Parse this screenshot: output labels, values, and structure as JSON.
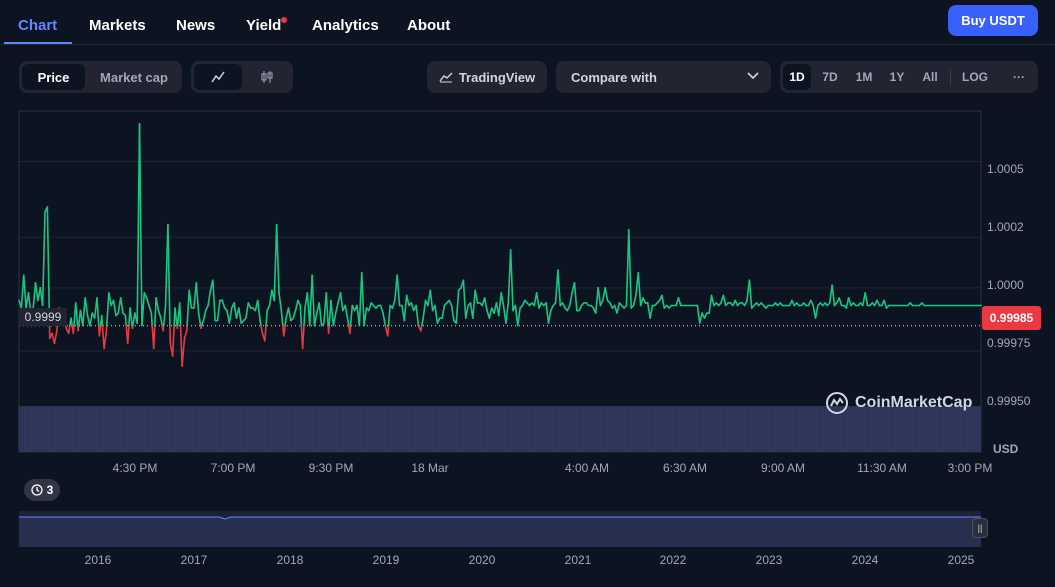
{
  "nav": {
    "tabs": [
      "Chart",
      "Markets",
      "News",
      "Yield",
      "Analytics",
      "About"
    ],
    "buy_label": "Buy USDT"
  },
  "toolbar": {
    "price_label": "Price",
    "marketcap_label": "Market cap",
    "tradingview_label": "TradingView",
    "compare_label": "Compare with",
    "ranges": [
      "1D",
      "7D",
      "1M",
      "1Y",
      "All"
    ],
    "log_label": "LOG",
    "more_label": "···"
  },
  "chart": {
    "current_price": "0.99985",
    "reference_price": "0.9999",
    "currency": "USD",
    "watermark": "CoinMarketCap",
    "history_count": "3",
    "colors": {
      "up": "#16c784",
      "down": "#ea3943",
      "accent": "#3861fb"
    }
  },
  "navigator": {
    "years": [
      "2016",
      "2017",
      "2018",
      "2019",
      "2020",
      "2021",
      "2022",
      "2023",
      "2024",
      "2025"
    ]
  },
  "chart_data": {
    "type": "line",
    "y_ticks": [
      "1.0005",
      "1.0002",
      "1.0000",
      "0.99975",
      "0.99950"
    ],
    "x_ticks": [
      "4:30 PM",
      "7:00 PM",
      "9:30 PM",
      "18 Mar",
      "4:00 AM",
      "6:30 AM",
      "9:00 AM",
      "11:30 AM",
      "3:00 PM"
    ],
    "ylim": [
      0.99935,
      1.0007
    ],
    "baseline": 0.99985,
    "values": [
      0.99995,
      0.99992,
      1.00005,
      0.99992,
      0.99998,
      0.9999,
      0.99992,
      1.00002,
      0.99995,
      1.0,
      0.99993,
      1.0003,
      1.00032,
      0.9998,
      0.99982,
      0.99978,
      0.99983,
      0.99992,
      0.9999,
      0.99988,
      0.99984,
      0.99982,
      0.99988,
      0.99982,
      0.99994,
      0.99983,
      0.99991,
      0.99985,
      0.99996,
      0.99989,
      0.99985,
      0.9999,
      0.99988,
      0.99996,
      0.99981,
      0.99989,
      0.99976,
      0.99983,
      0.99998,
      0.99993,
      0.99995,
      0.99989,
      0.9999,
      0.99996,
      0.9999,
      0.99989,
      0.99978,
      0.99992,
      0.99984,
      0.9999,
      0.99986,
      1.00065,
      0.99985,
      0.99998,
      0.99996,
      0.99993,
      0.9999,
      0.99976,
      0.99996,
      0.99991,
      0.99988,
      0.99983,
      0.99993,
      1.00025,
      0.99978,
      0.99973,
      0.99992,
      0.99984,
      0.99994,
      0.99969,
      0.9998,
      0.99983,
      0.99999,
      0.99992,
      0.99992,
      1.00002,
      0.9999,
      0.99984,
      0.99987,
      0.99991,
      0.99993,
      0.99999,
      1.00003,
      0.99987,
      0.99987,
      0.99995,
      0.99995,
      0.99992,
      0.99991,
      0.99986,
      0.99992,
      0.99994,
      0.99988,
      0.99992,
      0.99986,
      0.99987,
      0.99988,
      0.99994,
      0.99992,
      0.99992,
      0.99991,
      0.99995,
      0.99987,
      0.99982,
      0.99979,
      0.99991,
      0.99993,
      0.99999,
      0.99995,
      1.00025,
      0.99998,
      0.99991,
      0.99981,
      0.99988,
      0.99992,
      0.99987,
      0.99988,
      0.99991,
      0.99995,
      0.99993,
      0.99976,
      0.99992,
      0.99998,
      0.99985,
      1.00005,
      0.99985,
      0.9999,
      0.99994,
      0.99985,
      0.99986,
      0.99998,
      0.99982,
      0.99995,
      0.99985,
      0.9999,
      0.99994,
      0.99998,
      0.99991,
      0.99993,
      0.99988,
      0.99982,
      0.99993,
      0.99991,
      0.99993,
      0.99985,
      1.00006,
      0.99985,
      0.99992,
      0.99991,
      0.99994,
      0.99993,
      0.99992,
      0.99993,
      0.99993,
      0.9999,
      0.99985,
      0.99981,
      0.99993,
      0.99992,
      0.99995,
      1.00005,
      0.99993,
      0.99993,
      0.99987,
      0.99997,
      0.99993,
      0.99994,
      0.99991,
      0.99993,
      0.99985,
      0.99983,
      0.99988,
      0.99995,
      0.99993,
      0.99999,
      0.99991,
      0.99993,
      0.99986,
      0.99988,
      0.99988,
      0.99993,
      0.99994,
      0.99995,
      0.99993,
      0.99987,
      0.99986,
      0.99999,
      1.0,
      1.00003,
      0.99988,
      0.99993,
      0.99994,
      0.99988,
      0.99999,
      0.99994,
      0.99994,
      0.99993,
      0.99996,
      0.99991,
      0.99988,
      0.99992,
      0.9999,
      0.99994,
      0.99989,
      0.99998,
      0.99993,
      0.99986,
      0.99994,
      1.00015,
      0.99991,
      0.99993,
      0.99985,
      0.99992,
      0.99993,
      0.99995,
      0.99994,
      0.99993,
      0.99994,
      0.99993,
      0.99998,
      0.99992,
      0.99994,
      0.99993,
      0.99994,
      0.99986,
      0.99991,
      0.99993,
      0.99994,
      1.00007,
      0.99993,
      0.99994,
      0.99992,
      0.99991,
      0.99993,
      0.99998,
      1.00002,
      0.99991,
      0.99991,
      0.99993,
      0.99994,
      0.99994,
      0.99993,
      0.99993,
      0.99992,
      0.9999,
      1.0,
      0.99993,
      0.99995,
      1.0,
      0.99995,
      0.99994,
      0.99992,
      0.99993,
      0.9999,
      0.99994,
      0.99993,
      0.99992,
      0.99993,
      1.00023,
      0.99992,
      0.99993,
      0.99997,
      1.00006,
      0.99993,
      0.99996,
      0.99994,
      0.99994,
      0.99988,
      0.99993,
      0.99993,
      0.99994,
      0.99995,
      0.99997,
      0.99992,
      0.99993,
      0.99992,
      0.99993,
      0.99993,
      0.99993,
      0.99996,
      0.99993,
      0.99993,
      0.99993,
      0.99993,
      0.99993,
      0.99993,
      0.99993,
      0.99993,
      0.99986,
      0.9999,
      0.99988,
      0.9999,
      0.9999,
      0.99997,
      0.99993,
      0.99994,
      0.99993,
      0.99994,
      0.99997,
      0.99993,
      0.99994,
      0.99994,
      0.99993,
      0.99995,
      0.99993,
      0.99994,
      0.99994,
      0.99993,
      0.99995,
      1.00003,
      0.99992,
      0.99993,
      0.99994,
      0.99993,
      0.99994,
      0.99993,
      0.99992,
      0.99993,
      0.99993,
      0.99993,
      0.99994,
      0.99993,
      0.99994,
      0.99993,
      0.99993,
      0.99993,
      0.99993,
      0.99995,
      0.99993,
      0.99994,
      0.99993,
      0.99993,
      0.99994,
      0.99993,
      0.99993,
      0.99995,
      0.99993,
      0.99988,
      0.99993,
      0.99994,
      0.99993,
      0.99994,
      0.99993,
      0.99994,
      1.00001,
      0.99993,
      0.99994,
      0.99996,
      0.99993,
      0.99993,
      0.99992,
      0.99996,
      0.99993,
      0.99994,
      0.99993,
      0.99993,
      0.99994,
      0.99993,
      0.99998,
      0.99993,
      0.99993,
      0.99994,
      0.99993,
      0.99995,
      0.99993,
      0.99993,
      0.99995,
      0.99992,
      0.99993,
      0.99993,
      0.99993,
      0.99993,
      0.99993,
      0.99993,
      0.99993,
      0.99993,
      0.99993,
      0.99994,
      0.99993,
      0.99993,
      0.99993,
      0.99993,
      0.99994,
      0.99993,
      0.99993,
      0.99993,
      0.99993,
      0.99993,
      0.99993,
      0.99993,
      0.99993,
      0.99993,
      0.99993,
      0.99993,
      0.99993,
      0.99993,
      0.99993,
      0.99993,
      0.99993,
      0.99993,
      0.99993,
      0.99993,
      0.99993,
      0.99993,
      0.99993,
      0.99993,
      0.99993,
      0.99993
    ]
  }
}
